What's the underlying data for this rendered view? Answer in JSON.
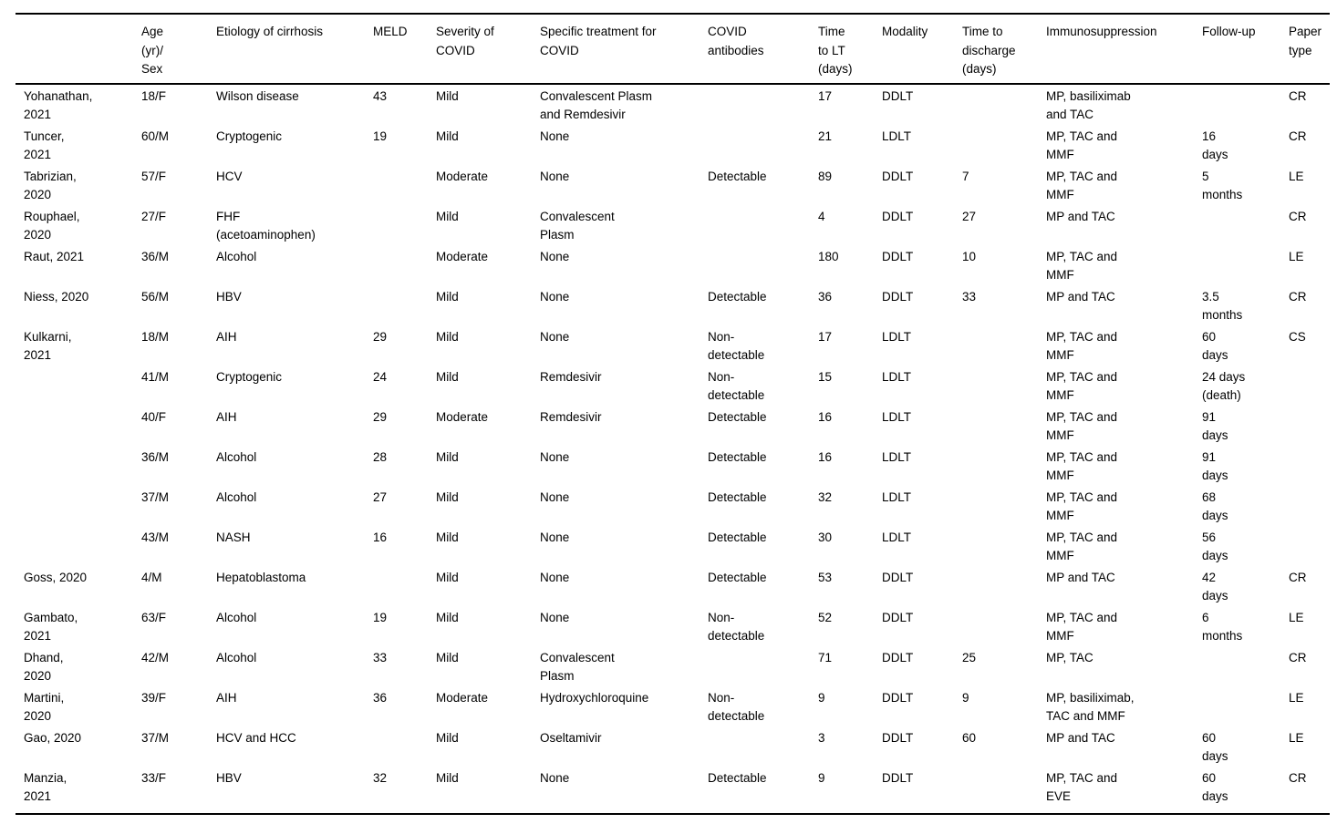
{
  "page": {
    "background_color": "#ffffff",
    "text_color": "#000000",
    "rule_color": "#000000"
  },
  "table": {
    "columns": [
      "",
      "Age\n(yr)/\nSex",
      "Etiology of cirrhosis",
      "MELD",
      "Severity of\nCOVID",
      "Specific treatment for\nCOVID",
      "COVID\nantibodies",
      "Time\nto LT\n(days)",
      "Modality",
      "Time to\ndischarge\n(days)",
      "Immunosuppression",
      "Follow-up",
      "Paper\ntype"
    ],
    "rows": [
      [
        "Yohanathan,\n2021",
        "18/F",
        "Wilson disease",
        "43",
        "Mild",
        "Convalescent Plasm\nand Remdesivir",
        "",
        "17",
        "DDLT",
        "",
        "MP, basiliximab\nand TAC",
        "",
        "CR"
      ],
      [
        "Tuncer,\n2021",
        "60/M",
        "Cryptogenic",
        "19",
        "Mild",
        "None",
        "",
        "21",
        "LDLT",
        "",
        "MP, TAC and\nMMF",
        "16\ndays",
        "CR"
      ],
      [
        "Tabrizian,\n2020",
        "57/F",
        "HCV",
        "",
        "Moderate",
        "None",
        "Detectable",
        "89",
        "DDLT",
        "7",
        "MP, TAC and\nMMF",
        "5\nmonths",
        "LE"
      ],
      [
        "Rouphael,\n2020",
        "27/F",
        "FHF\n(acetoaminophen)",
        "",
        "Mild",
        "Convalescent\nPlasm",
        "",
        "4",
        "DDLT",
        "27",
        "MP and TAC",
        "",
        "CR"
      ],
      [
        "Raut, 2021",
        "36/M",
        "Alcohol",
        "",
        "Moderate",
        "None",
        "",
        "180",
        "DDLT",
        "10",
        "MP, TAC and\nMMF",
        "",
        "LE"
      ],
      [
        "Niess, 2020",
        "56/M",
        "HBV",
        "",
        "Mild",
        "None",
        "Detectable",
        "36",
        "DDLT",
        "33",
        "MP and TAC",
        "3.5\nmonths",
        "CR"
      ],
      [
        "Kulkarni,\n2021",
        "18/M",
        "AIH",
        "29",
        "Mild",
        "None",
        "Non-\ndetectable",
        "17",
        "LDLT",
        "",
        "MP, TAC and\nMMF",
        "60\ndays",
        "CS"
      ],
      [
        "",
        "41/M",
        "Cryptogenic",
        "24",
        "Mild",
        "Remdesivir",
        "Non-\ndetectable",
        "15",
        "LDLT",
        "",
        "MP, TAC and\nMMF",
        "24 days\n(death)",
        ""
      ],
      [
        "",
        "40/F",
        "AIH",
        "29",
        "Moderate",
        "Remdesivir",
        "Detectable",
        "16",
        "LDLT",
        "",
        "MP, TAC and\nMMF",
        "91\ndays",
        ""
      ],
      [
        "",
        "36/M",
        "Alcohol",
        "28",
        "Mild",
        "None",
        "Detectable",
        "16",
        "LDLT",
        "",
        "MP, TAC and\nMMF",
        "91\ndays",
        ""
      ],
      [
        "",
        "37/M",
        "Alcohol",
        "27",
        "Mild",
        "None",
        "Detectable",
        "32",
        "LDLT",
        "",
        "MP, TAC and\nMMF",
        "68\ndays",
        ""
      ],
      [
        "",
        "43/M",
        "NASH",
        "16",
        "Mild",
        "None",
        "Detectable",
        "30",
        "LDLT",
        "",
        "MP, TAC and\nMMF",
        "56\ndays",
        ""
      ],
      [
        "Goss, 2020",
        "4/M",
        "Hepatoblastoma",
        "",
        "Mild",
        "None",
        "Detectable",
        "53",
        "DDLT",
        "",
        "MP and TAC",
        "42\ndays",
        "CR"
      ],
      [
        "Gambato,\n2021",
        "63/F",
        "Alcohol",
        "19",
        "Mild",
        "None",
        "Non-\ndetectable",
        "52",
        "DDLT",
        "",
        "MP, TAC and\nMMF",
        "6\nmonths",
        "LE"
      ],
      [
        "Dhand,\n2020",
        "42/M",
        "Alcohol",
        "33",
        "Mild",
        "Convalescent\nPlasm",
        "",
        "71",
        "DDLT",
        "25",
        "MP, TAC",
        "",
        "CR"
      ],
      [
        "Martini,\n2020",
        "39/F",
        "AIH",
        "36",
        "Moderate",
        "Hydroxychloroquine",
        "Non-\ndetectable",
        "9",
        "DDLT",
        "9",
        "MP, basiliximab,\nTAC and MMF",
        "",
        "LE"
      ],
      [
        "Gao, 2020",
        "37/M",
        "HCV and HCC",
        "",
        "Mild",
        "Oseltamivir",
        "",
        "3",
        "DDLT",
        "60",
        "MP and TAC",
        "60\ndays",
        "LE"
      ],
      [
        "Manzia,\n2021",
        "33/F",
        "HBV",
        "32",
        "Mild",
        "None",
        "Detectable",
        "9",
        "DDLT",
        "",
        "MP, TAC and\nEVE",
        "60\ndays",
        "CR"
      ]
    ]
  }
}
